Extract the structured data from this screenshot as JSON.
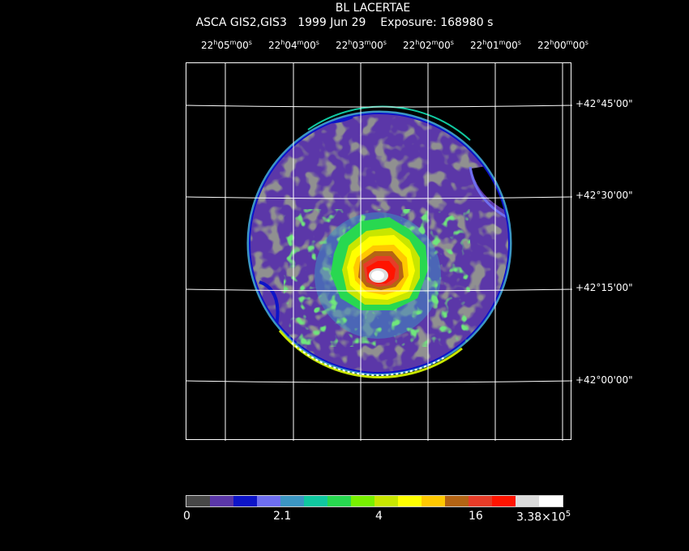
{
  "title": "BL LACERTAE",
  "subtitle": "ASCA GIS2,GIS3   1999 Jun 29    Exposure: 168980 s",
  "ra_labels": [
    {
      "h": "22",
      "m": "05",
      "s": "00"
    },
    {
      "h": "22",
      "m": "04",
      "s": "00"
    },
    {
      "h": "22",
      "m": "03",
      "s": "00"
    },
    {
      "h": "22",
      "m": "02",
      "s": "00"
    },
    {
      "h": "22",
      "m": "01",
      "s": "00"
    },
    {
      "h": "22",
      "m": "00",
      "s": "00"
    }
  ],
  "dec_labels": [
    "+42°45'00\"",
    "+42°30'00\"",
    "+42°15'00\"",
    "+42°00'00\""
  ],
  "colorbar": {
    "colors": [
      "#474747",
      "#5b37a8",
      "#0d14c8",
      "#6e6ef0",
      "#3c96c3",
      "#10c8a0",
      "#28d850",
      "#78f000",
      "#c8e600",
      "#ffff00",
      "#ffc800",
      "#b46414",
      "#e63c28",
      "#ff1400",
      "#dcdcdc",
      "#ffffff"
    ],
    "labels": [
      "0",
      "2.1",
      "4",
      "16",
      "3.38×10^5"
    ]
  }
}
